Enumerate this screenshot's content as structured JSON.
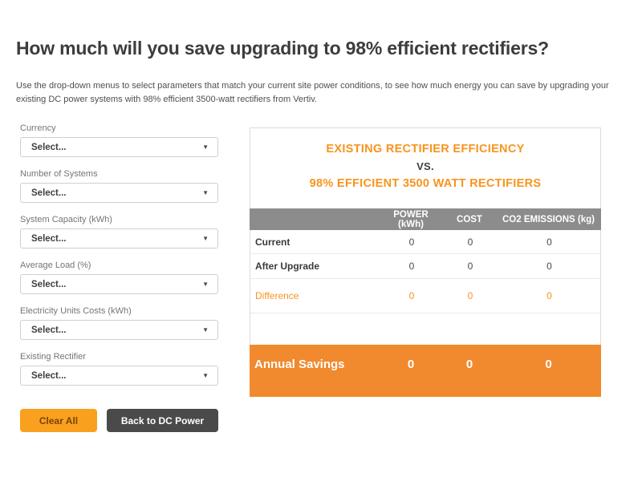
{
  "page": {
    "title": "How much will you save upgrading to 98% efficient rectifiers?",
    "subtitle": "Use the drop-down menus to select parameters that match your current site power conditions, to see how much energy you can save by upgrading your existing DC power systems with 98% efficient 3500-watt rectifiers from Vertiv."
  },
  "form": {
    "fields": [
      {
        "label": "Currency",
        "value": "Select..."
      },
      {
        "label": "Number of Systems",
        "value": "Select..."
      },
      {
        "label": "System Capacity (kWh)",
        "value": "Select..."
      },
      {
        "label": "Average Load (%)",
        "value": "Select..."
      },
      {
        "label": "Electricity Units Costs (kWh)",
        "value": "Select..."
      },
      {
        "label": "Existing Rectifier",
        "value": "Select..."
      }
    ],
    "buttons": {
      "clear": "Clear All",
      "back": "Back to DC Power"
    }
  },
  "results": {
    "heading": {
      "line1": "EXISTING RECTIFIER EFFICIENCY",
      "line2": "VS.",
      "line3": "98% EFFICIENT 3500 WATT RECTIFIERS"
    },
    "columns": [
      "POWER (kWh)",
      "COST",
      "CO2 EMISSIONS (kg)"
    ],
    "rows": [
      {
        "label": "Current",
        "power": "0",
        "cost": "0",
        "co2": "0"
      },
      {
        "label": "After Upgrade",
        "power": "0",
        "cost": "0",
        "co2": "0"
      },
      {
        "label": "Difference",
        "power": "0",
        "cost": "0",
        "co2": "0"
      }
    ],
    "footer": {
      "label": "Annual Savings",
      "power": "0",
      "cost": "0",
      "co2": "0"
    }
  },
  "icons": {
    "select_caret": "▼"
  },
  "colors": {
    "accent": "#F7941E",
    "footer_bar": "#F18A2E",
    "clear_btn": "#F9A11E",
    "dark_btn": "#4A4A4A",
    "header_bar": "#8C8C8C"
  }
}
